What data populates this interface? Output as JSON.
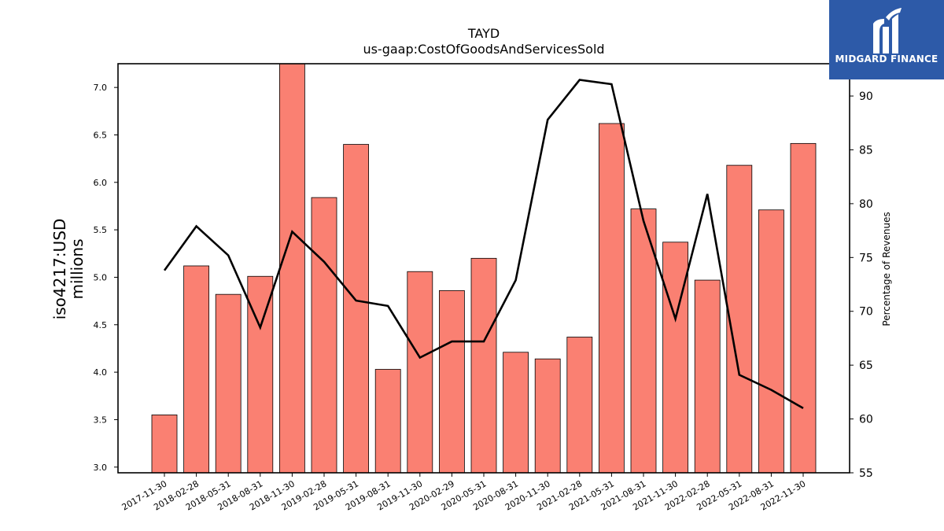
{
  "logo": {
    "text": "MIDGARD FINANCE",
    "background": "#2d5aa8",
    "text_color": "#ffffff"
  },
  "chart_data": {
    "type": "bar",
    "title": "TAYD",
    "subtitle": "us-gaap:CostOfGoodsAndServicesSold",
    "ylabel": "iso4217:USD\nmillions",
    "y2label": "Percentage of Revenues",
    "categories": [
      "2017-11-30",
      "2018-02-28",
      "2018-05-31",
      "2018-08-31",
      "2018-11-30",
      "2019-02-28",
      "2019-05-31",
      "2019-08-31",
      "2019-11-30",
      "2020-02-29",
      "2020-05-31",
      "2020-08-31",
      "2020-11-30",
      "2021-02-28",
      "2021-05-31",
      "2021-08-31",
      "2021-11-30",
      "2022-02-28",
      "2022-05-31",
      "2022-08-31",
      "2022-11-30"
    ],
    "ylim": [
      2.94,
      7.25
    ],
    "y2lim": [
      55,
      93
    ],
    "yticks": [
      "3.0",
      "3.5",
      "4.0",
      "4.5",
      "5.0",
      "5.5",
      "6.0",
      "6.5",
      "7.0"
    ],
    "y2ticks": [
      "55",
      "60",
      "65",
      "70",
      "75",
      "80",
      "85",
      "90"
    ],
    "grid": false,
    "series": [
      {
        "kind": "bar",
        "color": "#fa8072",
        "values": [
          3.55,
          5.12,
          4.82,
          5.01,
          7.25,
          5.84,
          6.4,
          4.03,
          5.06,
          4.86,
          5.2,
          4.21,
          4.14,
          4.37,
          6.62,
          5.72,
          5.37,
          4.97,
          6.18,
          5.71,
          6.41
        ]
      },
      {
        "kind": "line",
        "axis": "right",
        "color": "#000000",
        "values": [
          73.8,
          77.9,
          75.2,
          68.5,
          77.4,
          74.6,
          71.0,
          70.5,
          65.7,
          67.2,
          67.2,
          72.9,
          87.8,
          91.5,
          91.1,
          78.4,
          69.3,
          80.9,
          64.1,
          62.7,
          61.0
        ]
      }
    ]
  }
}
